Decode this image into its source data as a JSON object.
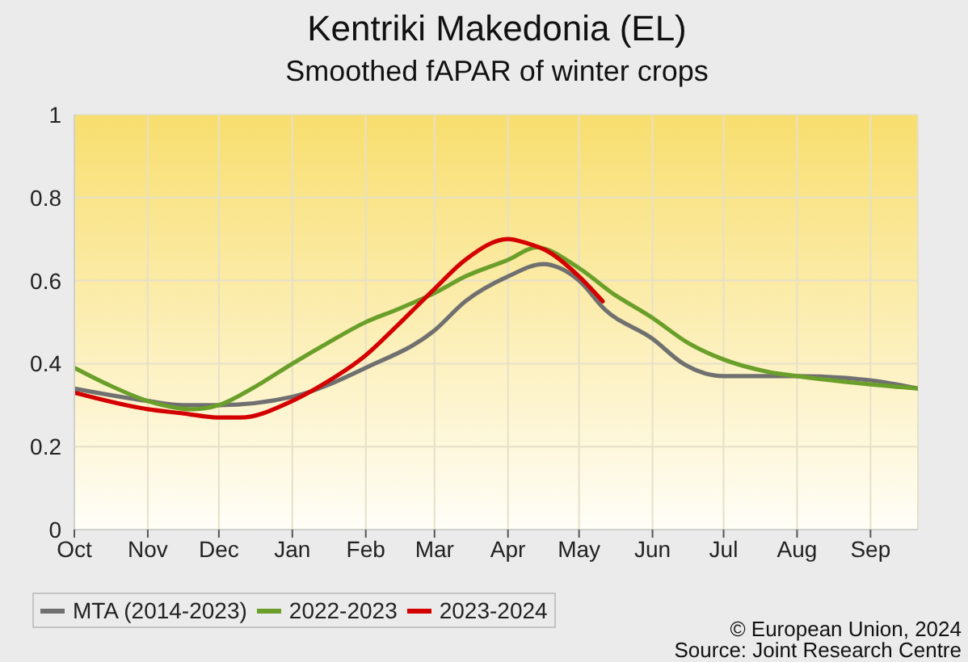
{
  "chart_data": {
    "type": "line",
    "title": "Kentriki Makedonia (EL)",
    "subtitle": "Smoothed fAPAR of winter crops",
    "xlim": [
      "2023-10-01",
      "2024-09-21"
    ],
    "xticks": [
      {
        "value": "2023-10-01",
        "label": "Oct"
      },
      {
        "value": "2023-11-01",
        "label": "Nov"
      },
      {
        "value": "2023-12-01",
        "label": "Dec"
      },
      {
        "value": "2024-01-01",
        "label": "Jan"
      },
      {
        "value": "2024-02-01",
        "label": "Feb"
      },
      {
        "value": "2024-03-01",
        "label": "Mar"
      },
      {
        "value": "2024-04-01",
        "label": "Apr"
      },
      {
        "value": "2024-05-01",
        "label": "May"
      },
      {
        "value": "2024-06-01",
        "label": "Jun"
      },
      {
        "value": "2024-07-01",
        "label": "Jul"
      },
      {
        "value": "2024-08-01",
        "label": "Aug"
      },
      {
        "value": "2024-09-01",
        "label": "Sep"
      }
    ],
    "ylim": [
      0,
      1
    ],
    "yticks": [
      0,
      0.2,
      0.4,
      0.6,
      0.8,
      1
    ],
    "series": [
      {
        "name": "MTA (2014-2023)",
        "color": "#707070",
        "x": [
          "2023-10-01",
          "2023-11-01",
          "2023-11-16",
          "2023-12-01",
          "2024-01-01",
          "2024-02-01",
          "2024-03-01",
          "2024-03-14",
          "2024-04-01",
          "2024-04-16",
          "2024-04-23",
          "2024-05-01",
          "2024-05-12",
          "2024-06-01",
          "2024-06-14",
          "2024-07-01",
          "2024-08-01",
          "2024-09-01",
          "2024-09-21"
        ],
        "values": [
          0.34,
          0.31,
          0.3,
          0.3,
          0.32,
          0.39,
          0.48,
          0.55,
          0.61,
          0.64,
          0.63,
          0.6,
          0.53,
          0.46,
          0.4,
          0.37,
          0.37,
          0.36,
          0.34
        ]
      },
      {
        "name": "2022-2023",
        "color": "#6a9f2a",
        "x": [
          "2023-10-01",
          "2023-10-15",
          "2023-11-01",
          "2023-11-20",
          "2023-12-01",
          "2023-12-15",
          "2024-01-01",
          "2024-01-16",
          "2024-02-01",
          "2024-02-14",
          "2024-03-01",
          "2024-03-14",
          "2024-04-01",
          "2024-04-13",
          "2024-05-01",
          "2024-05-15",
          "2024-06-01",
          "2024-06-16",
          "2024-07-01",
          "2024-07-20",
          "2024-08-01",
          "2024-09-01",
          "2024-09-21"
        ],
        "values": [
          0.39,
          0.35,
          0.31,
          0.29,
          0.3,
          0.34,
          0.4,
          0.45,
          0.5,
          0.53,
          0.57,
          0.61,
          0.65,
          0.68,
          0.63,
          0.57,
          0.51,
          0.45,
          0.41,
          0.38,
          0.37,
          0.35,
          0.34
        ]
      },
      {
        "name": "2023-2024",
        "color": "#d40000",
        "x": [
          "2023-10-01",
          "2023-11-01",
          "2023-11-16",
          "2023-12-01",
          "2023-12-10",
          "2024-01-01",
          "2024-01-14",
          "2024-02-01",
          "2024-02-14",
          "2024-03-01",
          "2024-03-14",
          "2024-04-01",
          "2024-04-09",
          "2024-04-18",
          "2024-05-01",
          "2024-05-11"
        ],
        "values": [
          0.33,
          0.29,
          0.28,
          0.27,
          0.27,
          0.31,
          0.35,
          0.42,
          0.49,
          0.58,
          0.65,
          0.7,
          0.69,
          0.67,
          0.61,
          0.55
        ]
      }
    ],
    "grid": true,
    "legend": "bottom left",
    "marker": "none",
    "annotations": [
      "© European Union, 2024",
      "Source: Joint Research Centre"
    ]
  }
}
